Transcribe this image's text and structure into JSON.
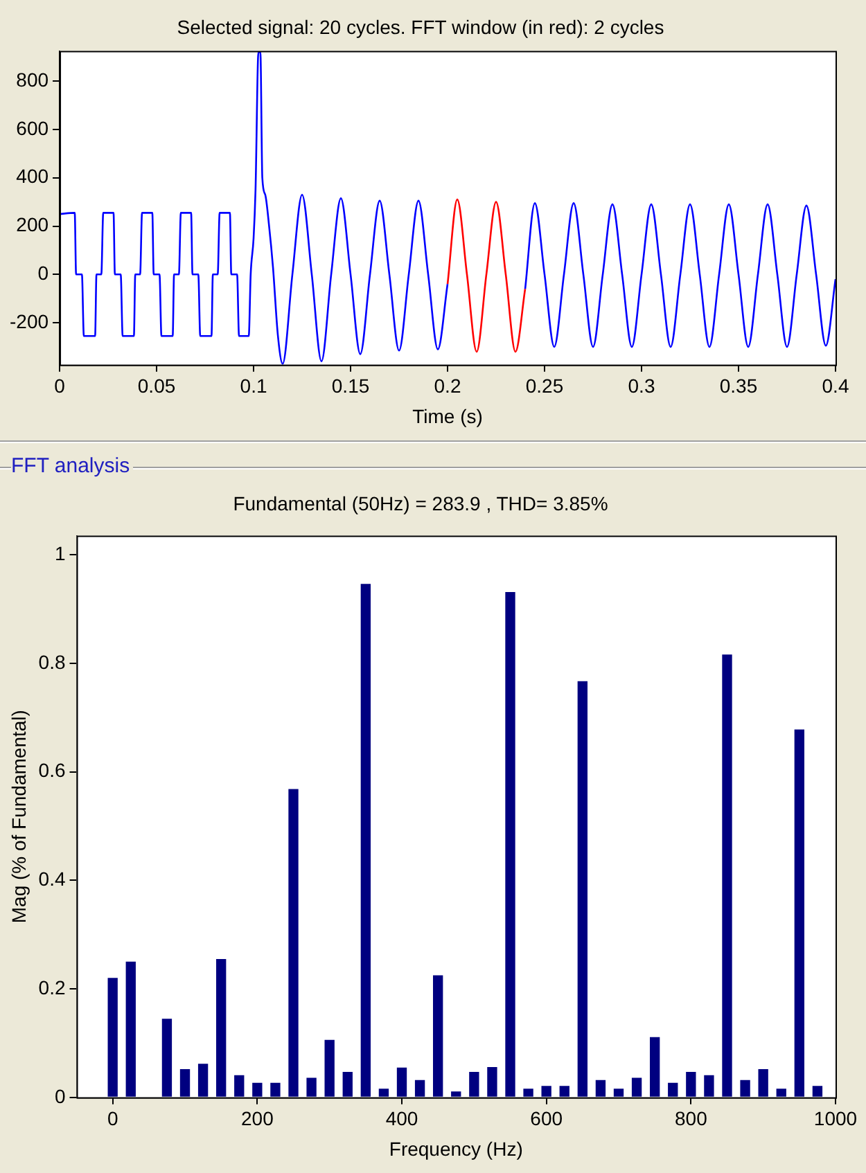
{
  "chart_data": [
    {
      "type": "line",
      "title": "Selected signal: 20 cycles. FFT window (in red): 2 cycles",
      "xlabel": "Time (s)",
      "xlim": [
        0,
        0.4
      ],
      "ylim": [
        -374,
        925
      ],
      "xticks": [
        0,
        0.05,
        0.1,
        0.15,
        0.2,
        0.25,
        0.3,
        0.35,
        0.4
      ],
      "yticks": [
        -200,
        0,
        200,
        400,
        600,
        800
      ],
      "series": [
        {
          "color": "#0000ff",
          "x": [
            0,
            0.0078,
            0.0085,
            0.0115,
            0.0125,
            0.0183,
            0.019,
            0.0215,
            0.0225,
            0.0278,
            0.0285,
            0.0315,
            0.0325,
            0.0383,
            0.039,
            0.0415,
            0.0425,
            0.0478,
            0.0485,
            0.0515,
            0.0525,
            0.0583,
            0.059,
            0.0615,
            0.0625,
            0.0678,
            0.0685,
            0.0715,
            0.0725,
            0.0783,
            0.079,
            0.0815,
            0.0825,
            0.0878,
            0.0885,
            0.0915,
            0.0925,
            0.0975,
            0.0985,
            0.1,
            0.101,
            0.1025,
            0.1035,
            0.1045,
            0.106,
            0.108,
            0.11,
            0.1125,
            0.115,
            0.12,
            0.125,
            0.13,
            0.135,
            0.14,
            0.145,
            0.15,
            0.155,
            0.16,
            0.165,
            0.17,
            0.175,
            0.18,
            0.185,
            0.19,
            0.195,
            0.2,
            0.22,
            0.24,
            0.245,
            0.25,
            0.255,
            0.26,
            0.265,
            0.27,
            0.275,
            0.28,
            0.285,
            0.29,
            0.295,
            0.3,
            0.305,
            0.31,
            0.315,
            0.32,
            0.325,
            0.33,
            0.335,
            0.34,
            0.345,
            0.35,
            0.355,
            0.36,
            0.365,
            0.37,
            0.375,
            0.38,
            0.385,
            0.39,
            0.395,
            0.4
          ],
          "values": [
            250,
            255,
            0,
            0,
            -255,
            -255,
            0,
            0,
            255,
            255,
            0,
            0,
            -255,
            -255,
            0,
            0,
            255,
            255,
            0,
            0,
            -255,
            -255,
            0,
            0,
            255,
            255,
            0,
            0,
            -255,
            -255,
            0,
            0,
            255,
            255,
            0,
            0,
            -255,
            -255,
            0,
            150,
            350,
            920,
            920,
            400,
            330,
            200,
            30,
            -250,
            -370,
            0,
            330,
            0,
            -360,
            0,
            315,
            0,
            -330,
            0,
            305,
            0,
            -315,
            0,
            305,
            0,
            -310,
            -40,
            null,
            -60,
            295,
            0,
            -300,
            0,
            295,
            0,
            -300,
            0,
            290,
            0,
            -300,
            0,
            290,
            0,
            -300,
            0,
            290,
            0,
            -300,
            0,
            290,
            0,
            -300,
            0,
            290,
            0,
            -300,
            0,
            285,
            0,
            -295,
            -20
          ]
        },
        {
          "color": "#ff0000",
          "x": [
            0.2,
            0.205,
            0.21,
            0.215,
            0.22,
            0.225,
            0.23,
            0.235,
            0.24
          ],
          "values": [
            -40,
            310,
            0,
            -320,
            0,
            300,
            0,
            -320,
            -60
          ]
        }
      ]
    },
    {
      "type": "bar",
      "title": "Fundamental (50Hz) = 283.9 , THD= 3.85%",
      "xlabel": "Frequency (Hz)",
      "ylabel": "Mag (% of Fundamental)",
      "annotations": [
        "FFT analysis"
      ],
      "color": "#000080",
      "xlim": [
        -50,
        1000
      ],
      "ylim": [
        0,
        1.035
      ],
      "xticks": [
        0,
        200,
        400,
        600,
        800,
        1000
      ],
      "yticks": [
        0,
        0.2,
        0.4,
        0.6,
        0.8,
        1
      ],
      "x": [
        0,
        25,
        75,
        100,
        125,
        150,
        175,
        200,
        225,
        250,
        275,
        300,
        325,
        350,
        375,
        400,
        425,
        450,
        475,
        500,
        525,
        550,
        575,
        600,
        625,
        650,
        675,
        700,
        725,
        750,
        775,
        800,
        825,
        850,
        875,
        900,
        925,
        950,
        975
      ],
      "values": [
        0.22,
        0.25,
        0.145,
        0.052,
        0.062,
        0.255,
        0.041,
        0.027,
        0.027,
        0.568,
        0.036,
        0.106,
        0.047,
        0.946,
        0.016,
        0.055,
        0.032,
        0.225,
        0.011,
        0.047,
        0.056,
        0.931,
        0.016,
        0.021,
        0.021,
        0.767,
        0.032,
        0.016,
        0.036,
        0.111,
        0.027,
        0.047,
        0.041,
        0.816,
        0.032,
        0.052,
        0.016,
        0.678,
        0.021
      ]
    }
  ]
}
